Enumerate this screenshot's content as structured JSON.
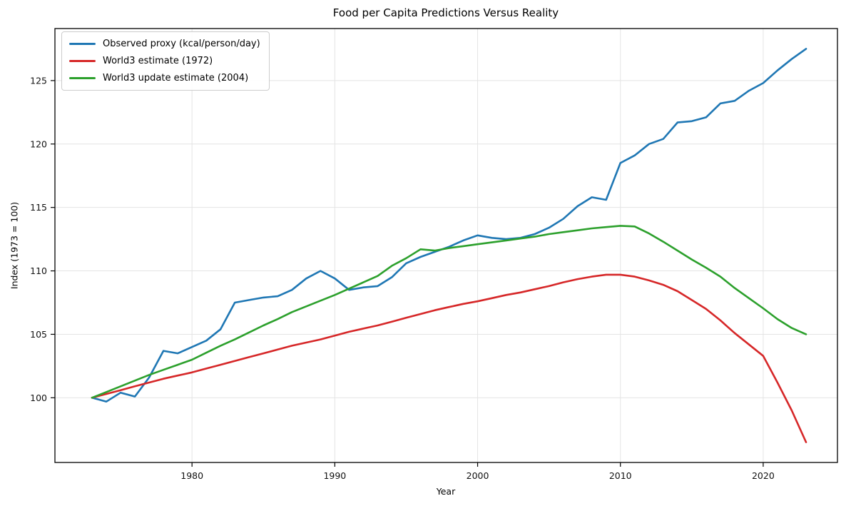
{
  "figure": {
    "title": "Food per Capita Predictions Versus Reality",
    "xlabel": "Year",
    "ylabel": "Index (1973 = 100)"
  },
  "chart_data": {
    "type": "line",
    "title": "Food per Capita Predictions Versus Reality",
    "xlabel": "Year",
    "ylabel": "Index (1973 = 100)",
    "grid": true,
    "legend_position": "upper-left",
    "xlim": [
      1970.4,
      2025.2
    ],
    "ylim": [
      94.9,
      129.1
    ],
    "x_ticks": [
      1980,
      1990,
      2000,
      2010,
      2020
    ],
    "y_ticks": [
      100,
      105,
      110,
      115,
      120,
      125
    ],
    "x": [
      1973,
      1974,
      1975,
      1976,
      1977,
      1978,
      1979,
      1980,
      1981,
      1982,
      1983,
      1984,
      1985,
      1986,
      1987,
      1988,
      1989,
      1990,
      1991,
      1992,
      1993,
      1994,
      1995,
      1996,
      1997,
      1998,
      1999,
      2000,
      2001,
      2002,
      2003,
      2004,
      2005,
      2006,
      2007,
      2008,
      2009,
      2010,
      2011,
      2012,
      2013,
      2014,
      2015,
      2016,
      2017,
      2018,
      2019,
      2020,
      2021,
      2022,
      2023
    ],
    "series": [
      {
        "name": "Observed proxy (kcal/person/day)",
        "color": "#1f77b4",
        "values": [
          100.0,
          99.7,
          100.4,
          100.1,
          101.6,
          103.7,
          103.5,
          104.0,
          104.5,
          105.4,
          107.5,
          107.7,
          107.9,
          108.0,
          108.5,
          109.4,
          110.0,
          109.4,
          108.5,
          108.7,
          108.8,
          109.5,
          110.6,
          111.1,
          111.5,
          111.9,
          112.4,
          112.8,
          112.6,
          112.5,
          112.6,
          112.9,
          113.4,
          114.1,
          115.1,
          115.8,
          115.6,
          118.5,
          119.1,
          120.0,
          120.4,
          121.7,
          121.8,
          122.1,
          123.2,
          123.4,
          124.2,
          124.8,
          125.8,
          126.7,
          127.5
        ]
      },
      {
        "name": "World3 estimate (1972)",
        "color": "#d62728",
        "values": [
          100.0,
          100.3,
          100.6,
          100.9,
          101.2,
          101.5,
          101.75,
          102.0,
          102.3,
          102.6,
          102.9,
          103.2,
          103.5,
          103.8,
          104.1,
          104.35,
          104.6,
          104.9,
          105.2,
          105.45,
          105.7,
          106.0,
          106.3,
          106.6,
          106.9,
          107.15,
          107.4,
          107.6,
          107.85,
          108.1,
          108.3,
          108.55,
          108.8,
          109.1,
          109.35,
          109.55,
          109.7,
          109.7,
          109.55,
          109.25,
          108.9,
          108.4,
          107.7,
          107.0,
          106.1,
          105.1,
          104.2,
          103.3,
          101.2,
          99.0,
          96.5
        ]
      },
      {
        "name": "World3 update estimate (2004)",
        "color": "#2ca02c",
        "values": [
          100.0,
          100.45,
          100.9,
          101.35,
          101.8,
          102.2,
          102.6,
          103.0,
          103.55,
          104.1,
          104.6,
          105.15,
          105.7,
          106.2,
          106.75,
          107.2,
          107.65,
          108.1,
          108.6,
          109.1,
          109.6,
          110.4,
          111.0,
          111.7,
          111.6,
          111.8,
          111.95,
          112.1,
          112.25,
          112.4,
          112.55,
          112.7,
          112.9,
          113.05,
          113.2,
          113.35,
          113.45,
          113.55,
          113.5,
          112.95,
          112.3,
          111.6,
          110.9,
          110.25,
          109.55,
          108.65,
          107.85,
          107.05,
          106.2,
          105.5,
          105.0
        ]
      }
    ],
    "style": {
      "grid_color": "#e4e4e4",
      "spine_color": "#000000",
      "tick_label_color": "#111111",
      "line_width": 2.6
    }
  }
}
